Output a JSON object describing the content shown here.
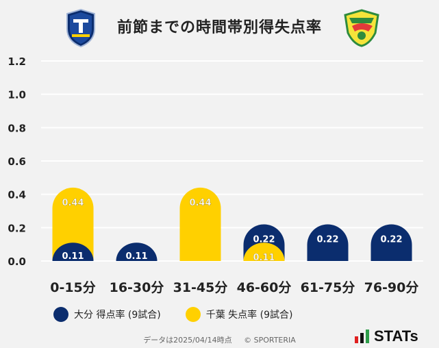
{
  "title": "前節までの時間帯別得失点率",
  "colors": {
    "home": "#0b2d6e",
    "away": "#ffd000",
    "grid": "#ffffff",
    "background": "#f2f2f2"
  },
  "chart_data": {
    "type": "bar",
    "categories": [
      "0-15分",
      "16-30分",
      "31-45分",
      "46-60分",
      "61-75分",
      "76-90分"
    ],
    "series": [
      {
        "name": "大分 得点率 (9試合)",
        "values": [
          0.11,
          0.11,
          0.0,
          0.22,
          0.22,
          0.22
        ],
        "labels": [
          "0.11",
          "0.11",
          "",
          "0.22",
          "0.22",
          "0.22"
        ],
        "color": "#0b2d6e"
      },
      {
        "name": "千葉 失点率 (9試合)",
        "values": [
          0.44,
          0.0,
          0.44,
          0.11,
          0.0,
          0.0
        ],
        "labels": [
          "0.44",
          "",
          "0.44",
          "0.11",
          "",
          ""
        ],
        "color": "#ffd000"
      }
    ],
    "yticks": [
      "0.0",
      "0.2",
      "0.4",
      "0.6",
      "0.8",
      "1.0",
      "1.2"
    ],
    "ylim": [
      0,
      1.2
    ],
    "grid": true,
    "legend": "bottom-left"
  },
  "legend": {
    "home": "大分 得点率 (9試合)",
    "away": "千葉 失点率 (9試合)"
  },
  "footer": {
    "date": "データは2025/04/14時点",
    "copyright": "© SPORTERIA"
  },
  "brand": "STATs"
}
